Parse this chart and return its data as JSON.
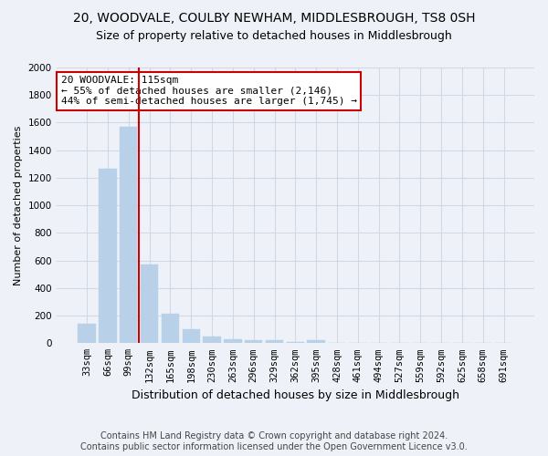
{
  "title": "20, WOODVALE, COULBY NEWHAM, MIDDLESBROUGH, TS8 0SH",
  "subtitle": "Size of property relative to detached houses in Middlesbrough",
  "xlabel": "Distribution of detached houses by size in Middlesbrough",
  "ylabel": "Number of detached properties",
  "categories": [
    "33sqm",
    "66sqm",
    "99sqm",
    "132sqm",
    "165sqm",
    "198sqm",
    "230sqm",
    "263sqm",
    "296sqm",
    "329sqm",
    "362sqm",
    "395sqm",
    "428sqm",
    "461sqm",
    "494sqm",
    "527sqm",
    "559sqm",
    "592sqm",
    "625sqm",
    "658sqm",
    "691sqm"
  ],
  "values": [
    140,
    1265,
    1570,
    570,
    215,
    100,
    50,
    30,
    20,
    20,
    10,
    20,
    0,
    0,
    0,
    0,
    0,
    0,
    0,
    0,
    0
  ],
  "bar_color": "#b8d0e8",
  "bar_edge_color": "#b8d0e8",
  "grid_color": "#d0d8e8",
  "background_color": "#eef2f8",
  "vline_color": "#cc0000",
  "annotation_text": "20 WOODVALE: 115sqm\n← 55% of detached houses are smaller (2,146)\n44% of semi-detached houses are larger (1,745) →",
  "annotation_box_color": "#ffffff",
  "annotation_box_edge_color": "#cc0000",
  "ylim": [
    0,
    2000
  ],
  "yticks": [
    0,
    200,
    400,
    600,
    800,
    1000,
    1200,
    1400,
    1600,
    1800,
    2000
  ],
  "footer_line1": "Contains HM Land Registry data © Crown copyright and database right 2024.",
  "footer_line2": "Contains public sector information licensed under the Open Government Licence v3.0.",
  "title_fontsize": 10,
  "subtitle_fontsize": 9,
  "xlabel_fontsize": 9,
  "ylabel_fontsize": 8,
  "tick_fontsize": 7.5,
  "annotation_fontsize": 8,
  "footer_fontsize": 7
}
